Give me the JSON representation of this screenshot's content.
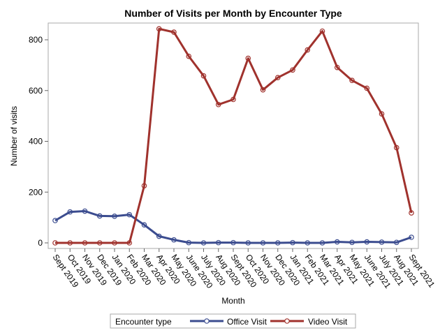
{
  "chart_data": {
    "type": "line",
    "title": "Number of Visits per Month by Encounter Type",
    "xlabel": "Month",
    "ylabel": "Number of visits",
    "ylim": [
      0,
      860
    ],
    "yticks": [
      0,
      200,
      400,
      600,
      800
    ],
    "grid": false,
    "legend_position": "bottom",
    "legend_title": "Encounter type",
    "categories": [
      "Sept 2019",
      "Oct 2019",
      "Nov 2019",
      "Dec 2019",
      "Jan 2020",
      "Feb 2020",
      "Mar 2020",
      "Apr 2020",
      "May 2020",
      "June 2020",
      "July 2020",
      "Aug 2020",
      "Sept 2020",
      "Oct 2020",
      "Nov 2020",
      "Dec 2020",
      "Jan 2021",
      "Feb 2021",
      "Mar 2021",
      "Apr 2021",
      "May 2021",
      "June 2021",
      "July 2021",
      "Aug 2021",
      "Sept 2021"
    ],
    "series": [
      {
        "name": "Office Visit",
        "color": "#3b4c8f",
        "values": [
          88,
          122,
          125,
          106,
          105,
          111,
          71,
          26,
          12,
          1,
          0,
          1,
          1,
          0,
          0,
          0,
          1,
          0,
          0,
          4,
          2,
          4,
          3,
          2,
          22
        ]
      },
      {
        "name": "Video Visit",
        "color": "#a0322d",
        "values": [
          0,
          0,
          0,
          0,
          0,
          0,
          225,
          843,
          830,
          735,
          658,
          545,
          565,
          727,
          603,
          651,
          681,
          760,
          834,
          691,
          640,
          609,
          508,
          375,
          118
        ]
      }
    ]
  }
}
